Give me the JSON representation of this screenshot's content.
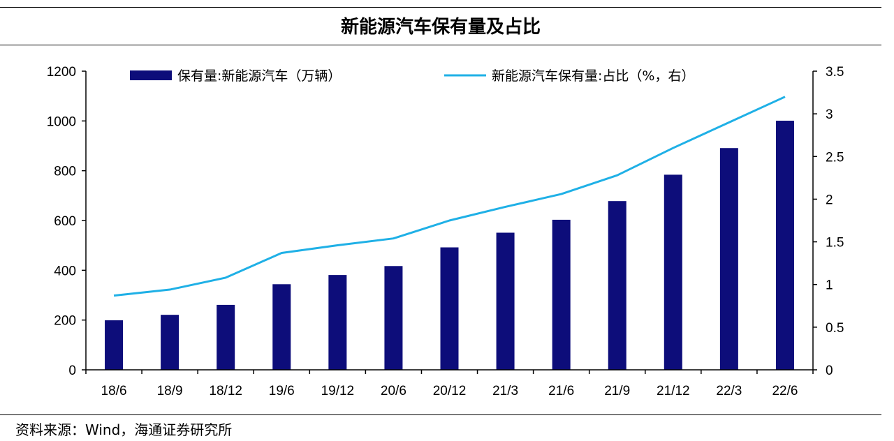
{
  "header": {
    "title": "新能源汽车保有量及占比"
  },
  "footer": {
    "source": "资料来源：Wind，海通证券研究所"
  },
  "colors": {
    "bar": "#0d0d7a",
    "line": "#1fb0e6",
    "axis": "#000000"
  },
  "chart_data": {
    "type": "bar",
    "categories": [
      "18/6",
      "18/9",
      "18/12",
      "19/6",
      "19/12",
      "20/6",
      "20/12",
      "21/3",
      "21/6",
      "21/9",
      "21/12",
      "22/3",
      "22/6"
    ],
    "series": [
      {
        "name": "保有量:新能源汽车（万辆）",
        "type": "bar",
        "axis": "left",
        "values": [
          199,
          221,
          261,
          344,
          381,
          417,
          492,
          551,
          603,
          678,
          784,
          891,
          1001
        ]
      },
      {
        "name": "新能源汽车保有量:占比（%，右）",
        "type": "line",
        "axis": "right",
        "values": [
          0.87,
          0.94,
          1.08,
          1.37,
          1.46,
          1.54,
          1.75,
          1.91,
          2.06,
          2.28,
          2.6,
          2.9,
          3.2
        ]
      }
    ],
    "y_left": {
      "min": 0,
      "max": 1200,
      "ticks": [
        0,
        200,
        400,
        600,
        800,
        1000,
        1200
      ]
    },
    "y_right": {
      "min": 0,
      "max": 3.5,
      "ticks": [
        "0",
        "0.5",
        "1",
        "1.5",
        "2",
        "2.5",
        "3",
        "3.5"
      ]
    },
    "grid": false,
    "legend": "top"
  }
}
